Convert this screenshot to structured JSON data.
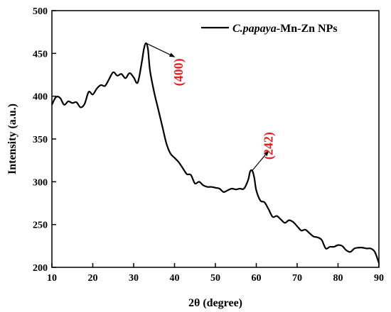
{
  "chart_data": {
    "type": "line",
    "xlabel": "2θ (degree)",
    "ylabel": "Intensity (a.u.)",
    "xlim": [
      10,
      90
    ],
    "ylim": [
      200,
      500
    ],
    "xticks": [
      10,
      20,
      30,
      40,
      50,
      60,
      70,
      80,
      90
    ],
    "yticks": [
      200,
      250,
      300,
      350,
      400,
      450,
      500
    ],
    "grid": false,
    "legend": {
      "position": "top-right",
      "italic_part": "C.papaya",
      "rest": "-Mn-Zn NPs"
    },
    "series": [
      {
        "name": "C.papaya-Mn-Zn NPs",
        "color": "#000000",
        "points": [
          [
            10,
            390
          ],
          [
            11,
            399
          ],
          [
            12,
            398
          ],
          [
            13,
            390
          ],
          [
            14,
            394
          ],
          [
            15,
            392
          ],
          [
            16,
            393
          ],
          [
            17,
            387
          ],
          [
            18,
            391
          ],
          [
            19,
            405
          ],
          [
            20,
            402
          ],
          [
            21,
            409
          ],
          [
            22,
            413
          ],
          [
            23,
            412
          ],
          [
            24,
            420
          ],
          [
            25,
            428
          ],
          [
            26,
            424
          ],
          [
            27,
            426
          ],
          [
            28,
            421
          ],
          [
            29,
            427
          ],
          [
            30,
            422
          ],
          [
            31,
            416
          ],
          [
            32,
            440
          ],
          [
            32.5,
            455
          ],
          [
            33,
            462
          ],
          [
            33.5,
            455
          ],
          [
            34,
            430
          ],
          [
            35,
            405
          ],
          [
            36,
            385
          ],
          [
            37,
            365
          ],
          [
            38,
            345
          ],
          [
            39,
            333
          ],
          [
            40,
            328
          ],
          [
            41,
            323
          ],
          [
            42,
            316
          ],
          [
            43,
            309
          ],
          [
            44,
            308
          ],
          [
            45,
            298
          ],
          [
            46,
            300
          ],
          [
            47,
            296
          ],
          [
            48,
            294
          ],
          [
            49,
            294
          ],
          [
            50,
            293
          ],
          [
            51,
            292
          ],
          [
            52,
            288
          ],
          [
            53,
            290
          ],
          [
            54,
            292
          ],
          [
            55,
            291
          ],
          [
            56,
            292
          ],
          [
            57,
            292
          ],
          [
            58,
            302
          ],
          [
            58.5,
            312
          ],
          [
            59,
            313
          ],
          [
            59.5,
            305
          ],
          [
            60,
            290
          ],
          [
            61,
            278
          ],
          [
            62,
            276
          ],
          [
            63,
            268
          ],
          [
            64,
            259
          ],
          [
            65,
            260
          ],
          [
            66,
            256
          ],
          [
            67,
            252
          ],
          [
            68,
            255
          ],
          [
            69,
            253
          ],
          [
            70,
            248
          ],
          [
            71,
            243
          ],
          [
            72,
            244
          ],
          [
            73,
            240
          ],
          [
            74,
            236
          ],
          [
            75,
            235
          ],
          [
            76,
            232
          ],
          [
            77,
            222
          ],
          [
            78,
            224
          ],
          [
            79,
            224
          ],
          [
            80,
            226
          ],
          [
            81,
            225
          ],
          [
            82,
            220
          ],
          [
            83,
            218
          ],
          [
            84,
            222
          ],
          [
            85,
            223
          ],
          [
            86,
            223
          ],
          [
            87,
            222
          ],
          [
            88,
            222
          ],
          [
            89,
            218
          ],
          [
            90,
            205
          ]
        ]
      }
    ],
    "annotations": [
      {
        "label": "(400)",
        "color": "#e32222",
        "arrow_from": [
          33,
          462
        ],
        "arrow_to": [
          40,
          446
        ],
        "text_at": [
          42,
          428
        ]
      },
      {
        "label": "(242)",
        "color": "#e32222",
        "arrow_from": [
          59,
          313
        ],
        "arrow_to": [
          63,
          336
        ],
        "text_at": [
          64,
          342
        ]
      }
    ]
  }
}
